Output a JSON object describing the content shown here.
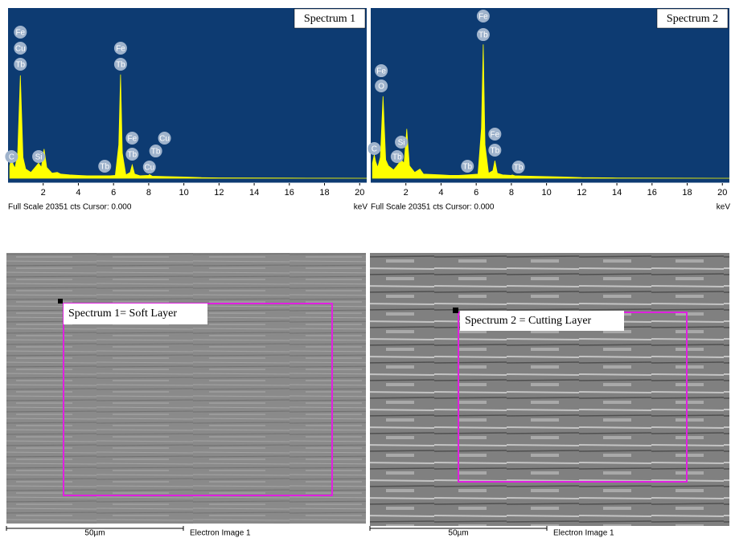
{
  "chart_data": [
    {
      "type": "area",
      "title": "Spectrum 1",
      "footer": "Full Scale 20351 cts Cursor: 0.000",
      "x_label": "keV",
      "color": "#ffff00",
      "background": "#0d3b72",
      "x": [
        0.1,
        0.2,
        0.28,
        0.4,
        0.55,
        0.7,
        0.85,
        1.0,
        1.3,
        1.5,
        1.74,
        1.9,
        2.05,
        2.2,
        2.5,
        2.8,
        3.0,
        3.5,
        4.0,
        4.5,
        5.0,
        5.5,
        5.8,
        6.1,
        6.3,
        6.4,
        6.5,
        6.7,
        6.95,
        7.06,
        7.2,
        7.5,
        8.0,
        8.04,
        8.2,
        9,
        10,
        11,
        12,
        14,
        16,
        18,
        20.4
      ],
      "values": [
        1500,
        2500,
        1700,
        1200,
        3000,
        12300,
        2500,
        1100,
        700,
        1200,
        1800,
        1300,
        3500,
        1300,
        600,
        700,
        500,
        400,
        350,
        300,
        300,
        300,
        300,
        350,
        4000,
        12400,
        3000,
        400,
        700,
        1600,
        500,
        300,
        350,
        450,
        250,
        200,
        150,
        80,
        50,
        30,
        20,
        10,
        0
      ],
      "xlim": [
        0,
        20.4
      ],
      "ylim": [
        0,
        20351
      ],
      "xticks": [
        2,
        4,
        6,
        8,
        10,
        12,
        14,
        16,
        18,
        20
      ],
      "annotations": [
        {
          "text": "Fe",
          "x": 0.7,
          "y": 17470
        },
        {
          "text": "Cu",
          "x": 0.7,
          "y": 15550
        },
        {
          "text": "Tb",
          "x": 0.7,
          "y": 13630
        },
        {
          "text": "C",
          "x": 0.2,
          "y": 2590
        },
        {
          "text": "Si",
          "x": 1.74,
          "y": 2590
        },
        {
          "text": "Tb",
          "x": 5.5,
          "y": 1440
        },
        {
          "text": "Fe",
          "x": 6.4,
          "y": 15550
        },
        {
          "text": "Tb",
          "x": 6.4,
          "y": 13630
        },
        {
          "text": "Fe",
          "x": 7.06,
          "y": 4800
        },
        {
          "text": "Tb",
          "x": 7.06,
          "y": 2880
        },
        {
          "text": "Cu",
          "x": 8.04,
          "y": 1340
        },
        {
          "text": "Tb",
          "x": 8.4,
          "y": 3260
        },
        {
          "text": "Cu",
          "x": 8.9,
          "y": 4800
        }
      ]
    },
    {
      "type": "area",
      "title": "Spectrum 2",
      "footer": "Full Scale 20351 cts Cursor: 0.000",
      "x_label": "keV",
      "color": "#ffff00",
      "background": "#0d3b72",
      "x": [
        0.1,
        0.2,
        0.28,
        0.4,
        0.55,
        0.7,
        0.85,
        1.0,
        1.3,
        1.5,
        1.74,
        1.9,
        2.05,
        2.2,
        2.5,
        2.8,
        3.0,
        3.5,
        4.0,
        4.5,
        5.0,
        5.5,
        5.8,
        6.1,
        6.3,
        6.4,
        6.5,
        6.7,
        6.95,
        7.06,
        7.2,
        7.5,
        8.0,
        8.04,
        8.2,
        9,
        10,
        11,
        12,
        14,
        16,
        18,
        20.4
      ],
      "values": [
        1800,
        2800,
        2000,
        1300,
        2500,
        9800,
        2200,
        1500,
        1000,
        1500,
        2200,
        1800,
        5900,
        1500,
        700,
        1100,
        500,
        450,
        400,
        350,
        350,
        400,
        450,
        500,
        6000,
        16000,
        4000,
        600,
        900,
        2100,
        600,
        400,
        350,
        400,
        300,
        250,
        200,
        150,
        80,
        40,
        20,
        10,
        0
      ],
      "xlim": [
        0,
        20.4
      ],
      "ylim": [
        0,
        20351
      ],
      "xticks": [
        2,
        4,
        6,
        8,
        10,
        12,
        14,
        16,
        18,
        20
      ],
      "annotations": [
        {
          "text": "Fe",
          "x": 6.4,
          "y": 19390
        },
        {
          "text": "Tb",
          "x": 6.4,
          "y": 17180
        },
        {
          "text": "Fe",
          "x": 0.6,
          "y": 12860
        },
        {
          "text": "O",
          "x": 0.6,
          "y": 11040
        },
        {
          "text": "C",
          "x": 0.2,
          "y": 3550
        },
        {
          "text": "Si",
          "x": 1.74,
          "y": 4320
        },
        {
          "text": "Tb",
          "x": 1.5,
          "y": 2590
        },
        {
          "text": "Tb",
          "x": 5.5,
          "y": 1440
        },
        {
          "text": "Fe",
          "x": 7.06,
          "y": 5280
        },
        {
          "text": "Tb",
          "x": 7.06,
          "y": 3360
        },
        {
          "text": "Tb",
          "x": 8.4,
          "y": 1340
        }
      ]
    }
  ],
  "images": [
    {
      "caption": "Spectrum 1= Soft Layer",
      "scale": "50µm",
      "label": "Electron Image 1"
    },
    {
      "caption": "Spectrum 2 = Cutting Layer",
      "scale": "50µm",
      "label": "Electron Image 1"
    }
  ]
}
